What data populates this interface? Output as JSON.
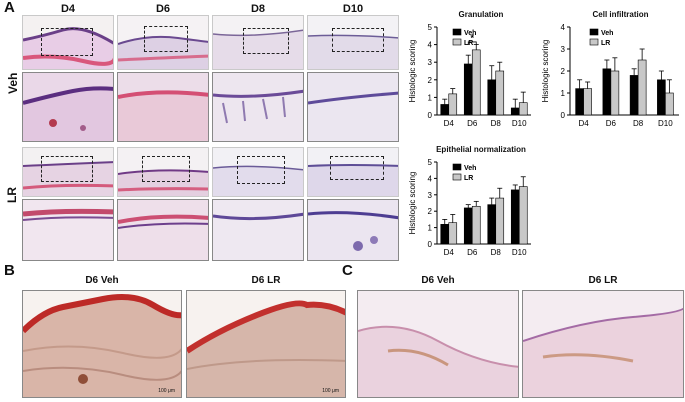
{
  "panels": {
    "a": "A",
    "b": "B",
    "c": "C"
  },
  "panel_a": {
    "days": [
      "D4",
      "D6",
      "D8",
      "D10"
    ],
    "rows": [
      "Veh",
      "LR"
    ]
  },
  "panel_b": {
    "left": "D6 Veh",
    "right": "D6 LR",
    "scale": "100 μm"
  },
  "panel_c": {
    "left": "D6 Veh",
    "right": "D6 LR"
  },
  "chart_data": [
    {
      "type": "bar",
      "title": "Granulation",
      "ylabel": "Histologic scoring",
      "categories": [
        "D4",
        "D6",
        "D8",
        "D10"
      ],
      "ylim": [
        0,
        5
      ],
      "yticks": [
        0,
        1,
        2,
        3,
        4,
        5
      ],
      "legend": [
        "Veh",
        "LR"
      ],
      "series": [
        {
          "name": "Veh",
          "color": "#000000",
          "values": [
            0.6,
            2.9,
            2.0,
            0.4
          ],
          "errors": [
            0.3,
            0.5,
            0.8,
            0.5
          ]
        },
        {
          "name": "LR",
          "color": "#c8c8c8",
          "values": [
            1.2,
            3.7,
            2.5,
            0.7
          ],
          "errors": [
            0.3,
            0.3,
            0.5,
            0.6
          ]
        }
      ],
      "annotation": "*"
    },
    {
      "type": "bar",
      "title": "Cell infiltration",
      "ylabel": "Histologic scoring",
      "categories": [
        "D4",
        "D6",
        "D8",
        "D10"
      ],
      "ylim": [
        0,
        4
      ],
      "yticks": [
        0,
        1,
        2,
        3,
        4
      ],
      "legend": [
        "Veh",
        "LR"
      ],
      "series": [
        {
          "name": "Veh",
          "color": "#000000",
          "values": [
            1.2,
            2.1,
            1.8,
            1.6
          ],
          "errors": [
            0.4,
            0.4,
            0.3,
            0.4
          ]
        },
        {
          "name": "LR",
          "color": "#c8c8c8",
          "values": [
            1.2,
            2.0,
            2.5,
            1.0
          ],
          "errors": [
            0.3,
            0.6,
            0.5,
            0.6
          ]
        }
      ]
    },
    {
      "type": "bar",
      "title": "Epithelial normalization",
      "ylabel": "Histologic scoring",
      "categories": [
        "D4",
        "D6",
        "D8",
        "D10"
      ],
      "ylim": [
        0,
        5
      ],
      "yticks": [
        0,
        1,
        2,
        3,
        4,
        5
      ],
      "legend": [
        "Veh",
        "LR"
      ],
      "series": [
        {
          "name": "Veh",
          "color": "#000000",
          "values": [
            1.2,
            2.2,
            2.4,
            3.3
          ],
          "errors": [
            0.3,
            0.2,
            0.4,
            0.3
          ]
        },
        {
          "name": "LR",
          "color": "#c8c8c8",
          "values": [
            1.3,
            2.3,
            2.8,
            3.5
          ],
          "errors": [
            0.5,
            0.3,
            0.6,
            0.6
          ]
        }
      ]
    }
  ]
}
